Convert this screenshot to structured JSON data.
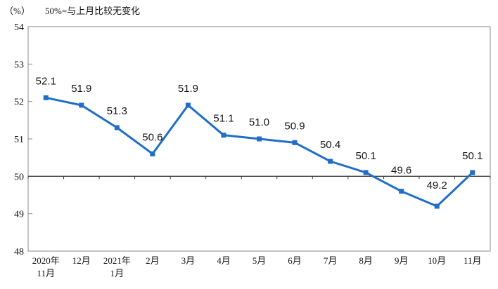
{
  "chart_data": {
    "type": "line",
    "unit_label": "（%）",
    "note": "50%=与上月比较无变化",
    "categories": [
      [
        "2020年",
        "11月"
      ],
      [
        "12月"
      ],
      [
        "2021年",
        "1月"
      ],
      [
        "2月"
      ],
      [
        "3月"
      ],
      [
        "4月"
      ],
      [
        "5月"
      ],
      [
        "6月"
      ],
      [
        "7月"
      ],
      [
        "8月"
      ],
      [
        "9月"
      ],
      [
        "10月"
      ],
      [
        "11月"
      ]
    ],
    "values": [
      52.1,
      51.9,
      51.3,
      50.6,
      51.9,
      51.1,
      51.0,
      50.9,
      50.4,
      50.1,
      49.6,
      49.2,
      50.1
    ],
    "data_labels": [
      "52.1",
      "51.9",
      "51.3",
      "50.6",
      "51.9",
      "51.1",
      "51.0",
      "50.9",
      "50.4",
      "50.1",
      "49.6",
      "49.2",
      "50.1"
    ],
    "ylim": [
      48,
      54
    ],
    "yticks": [
      48,
      49,
      50,
      51,
      52,
      53,
      54
    ],
    "reference_line": 50,
    "line_color": "#1f6ec9",
    "marker": "square",
    "grid": false,
    "legend": "none",
    "axis_color": "#8a8a8a",
    "ref_line_color": "#3c3c3c"
  }
}
